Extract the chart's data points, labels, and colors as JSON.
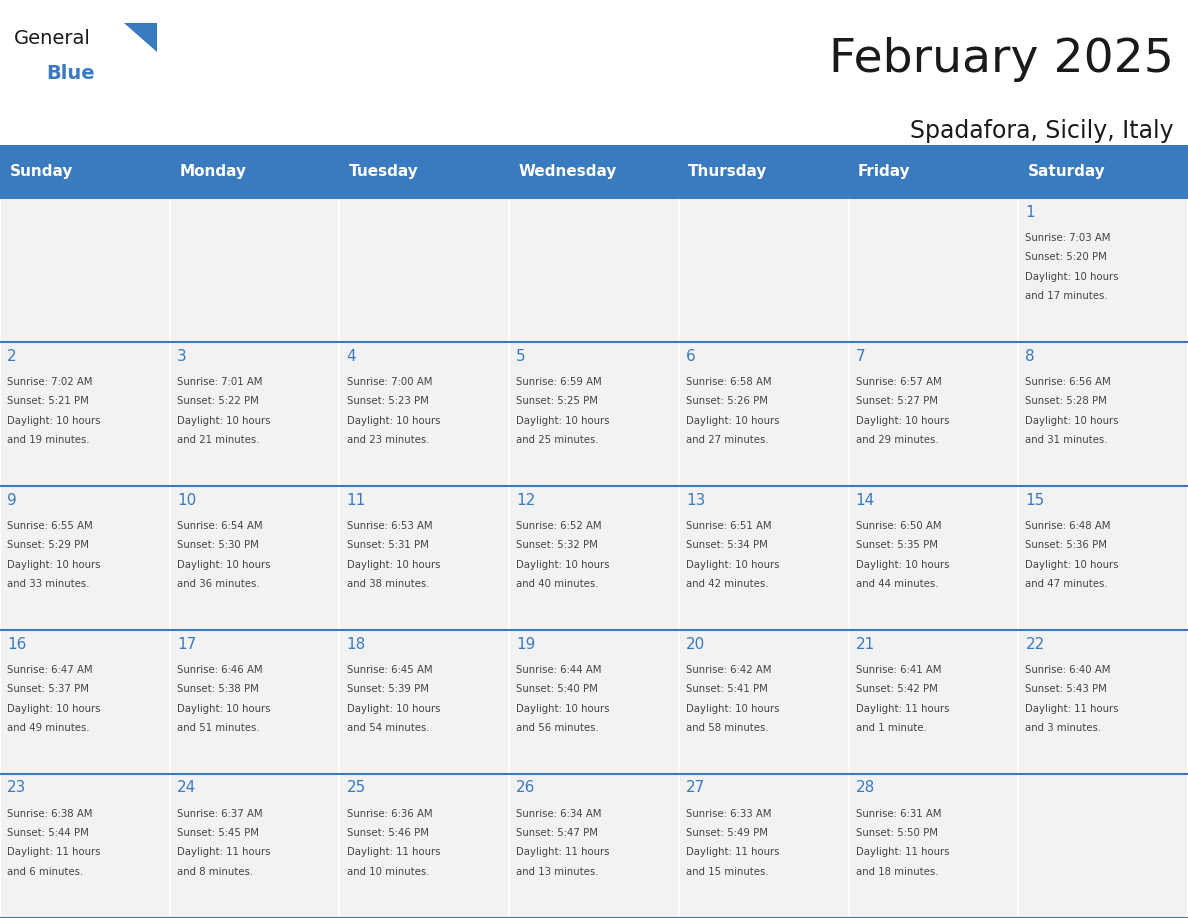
{
  "title": "February 2025",
  "subtitle": "Spadafora, Sicily, Italy",
  "days_of_week": [
    "Sunday",
    "Monday",
    "Tuesday",
    "Wednesday",
    "Thursday",
    "Friday",
    "Saturday"
  ],
  "header_bg": "#3a7abf",
  "header_text": "#ffffff",
  "cell_bg": "#f2f2f2",
  "border_color": "#3a7abf",
  "text_color": "#444444",
  "day_num_color": "#3a7abf",
  "calendar_data": [
    [
      null,
      null,
      null,
      null,
      null,
      null,
      1
    ],
    [
      2,
      3,
      4,
      5,
      6,
      7,
      8
    ],
    [
      9,
      10,
      11,
      12,
      13,
      14,
      15
    ],
    [
      16,
      17,
      18,
      19,
      20,
      21,
      22
    ],
    [
      23,
      24,
      25,
      26,
      27,
      28,
      null
    ]
  ],
  "sun_times": {
    "1": [
      "Sunrise: 7:03 AM",
      "Sunset: 5:20 PM",
      "Daylight: 10 hours",
      "and 17 minutes."
    ],
    "2": [
      "Sunrise: 7:02 AM",
      "Sunset: 5:21 PM",
      "Daylight: 10 hours",
      "and 19 minutes."
    ],
    "3": [
      "Sunrise: 7:01 AM",
      "Sunset: 5:22 PM",
      "Daylight: 10 hours",
      "and 21 minutes."
    ],
    "4": [
      "Sunrise: 7:00 AM",
      "Sunset: 5:23 PM",
      "Daylight: 10 hours",
      "and 23 minutes."
    ],
    "5": [
      "Sunrise: 6:59 AM",
      "Sunset: 5:25 PM",
      "Daylight: 10 hours",
      "and 25 minutes."
    ],
    "6": [
      "Sunrise: 6:58 AM",
      "Sunset: 5:26 PM",
      "Daylight: 10 hours",
      "and 27 minutes."
    ],
    "7": [
      "Sunrise: 6:57 AM",
      "Sunset: 5:27 PM",
      "Daylight: 10 hours",
      "and 29 minutes."
    ],
    "8": [
      "Sunrise: 6:56 AM",
      "Sunset: 5:28 PM",
      "Daylight: 10 hours",
      "and 31 minutes."
    ],
    "9": [
      "Sunrise: 6:55 AM",
      "Sunset: 5:29 PM",
      "Daylight: 10 hours",
      "and 33 minutes."
    ],
    "10": [
      "Sunrise: 6:54 AM",
      "Sunset: 5:30 PM",
      "Daylight: 10 hours",
      "and 36 minutes."
    ],
    "11": [
      "Sunrise: 6:53 AM",
      "Sunset: 5:31 PM",
      "Daylight: 10 hours",
      "and 38 minutes."
    ],
    "12": [
      "Sunrise: 6:52 AM",
      "Sunset: 5:32 PM",
      "Daylight: 10 hours",
      "and 40 minutes."
    ],
    "13": [
      "Sunrise: 6:51 AM",
      "Sunset: 5:34 PM",
      "Daylight: 10 hours",
      "and 42 minutes."
    ],
    "14": [
      "Sunrise: 6:50 AM",
      "Sunset: 5:35 PM",
      "Daylight: 10 hours",
      "and 44 minutes."
    ],
    "15": [
      "Sunrise: 6:48 AM",
      "Sunset: 5:36 PM",
      "Daylight: 10 hours",
      "and 47 minutes."
    ],
    "16": [
      "Sunrise: 6:47 AM",
      "Sunset: 5:37 PM",
      "Daylight: 10 hours",
      "and 49 minutes."
    ],
    "17": [
      "Sunrise: 6:46 AM",
      "Sunset: 5:38 PM",
      "Daylight: 10 hours",
      "and 51 minutes."
    ],
    "18": [
      "Sunrise: 6:45 AM",
      "Sunset: 5:39 PM",
      "Daylight: 10 hours",
      "and 54 minutes."
    ],
    "19": [
      "Sunrise: 6:44 AM",
      "Sunset: 5:40 PM",
      "Daylight: 10 hours",
      "and 56 minutes."
    ],
    "20": [
      "Sunrise: 6:42 AM",
      "Sunset: 5:41 PM",
      "Daylight: 10 hours",
      "and 58 minutes."
    ],
    "21": [
      "Sunrise: 6:41 AM",
      "Sunset: 5:42 PM",
      "Daylight: 11 hours",
      "and 1 minute."
    ],
    "22": [
      "Sunrise: 6:40 AM",
      "Sunset: 5:43 PM",
      "Daylight: 11 hours",
      "and 3 minutes."
    ],
    "23": [
      "Sunrise: 6:38 AM",
      "Sunset: 5:44 PM",
      "Daylight: 11 hours",
      "and 6 minutes."
    ],
    "24": [
      "Sunrise: 6:37 AM",
      "Sunset: 5:45 PM",
      "Daylight: 11 hours",
      "and 8 minutes."
    ],
    "25": [
      "Sunrise: 6:36 AM",
      "Sunset: 5:46 PM",
      "Daylight: 11 hours",
      "and 10 minutes."
    ],
    "26": [
      "Sunrise: 6:34 AM",
      "Sunset: 5:47 PM",
      "Daylight: 11 hours",
      "and 13 minutes."
    ],
    "27": [
      "Sunrise: 6:33 AM",
      "Sunset: 5:49 PM",
      "Daylight: 11 hours",
      "and 15 minutes."
    ],
    "28": [
      "Sunrise: 6:31 AM",
      "Sunset: 5:50 PM",
      "Daylight: 11 hours",
      "and 18 minutes."
    ]
  }
}
